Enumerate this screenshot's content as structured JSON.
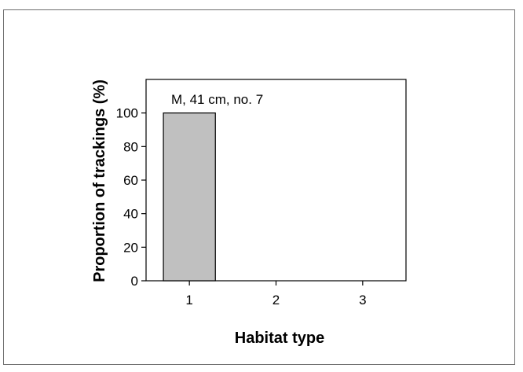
{
  "chart_data": {
    "type": "bar",
    "categories": [
      "1",
      "2",
      "3"
    ],
    "values": [
      100,
      0,
      0
    ],
    "xlabel": "Habitat type",
    "ylabel": "Proportion of trackings (%)",
    "ylim": [
      0,
      120
    ],
    "yticks": [
      "0",
      "20",
      "40",
      "60",
      "80",
      "100"
    ],
    "annotation": "M, 41 cm, no. 7",
    "grid": false,
    "legend": "none",
    "bar_color": "#c0c0c0",
    "bar_edge_color": "#000000"
  }
}
